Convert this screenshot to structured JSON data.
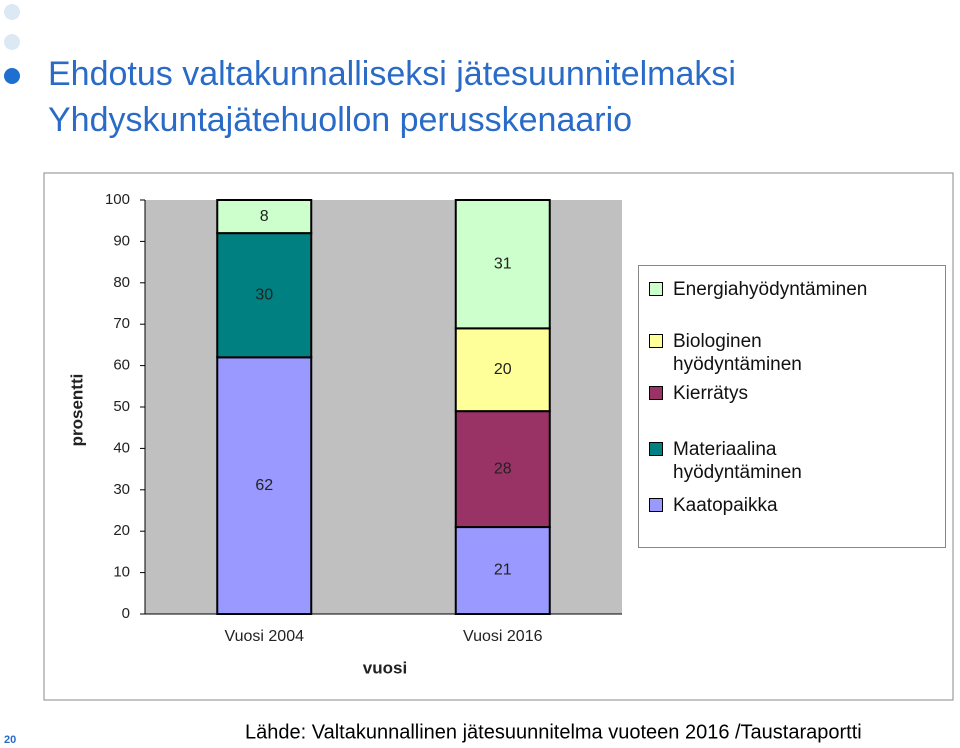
{
  "header": {
    "title": "Ehdotus valtakunnalliseksi jätesuunnitelmaksi",
    "subtitle": "Yhdyskuntajätehuollon perusskenaario"
  },
  "footer": {
    "source": "Lähde: Valtakunnallinen jätesuunnitelma vuoteen 2016 /Taustaraportti",
    "page_number": "20"
  },
  "chart_data": {
    "type": "stacked_bar",
    "categories": [
      "Vuosi 2004",
      "Vuosi 2016"
    ],
    "x_label": "vuosi",
    "y_label": "prosentti",
    "ylim": [
      0,
      100
    ],
    "yticks": [
      0,
      10,
      20,
      30,
      40,
      50,
      60,
      70,
      80,
      90,
      100
    ],
    "grid": false,
    "series": [
      {
        "name": "Kaatopaikka",
        "color": "#9999ff",
        "values": [
          62,
          21
        ]
      },
      {
        "name": "Materiaalina hyödyntäminen",
        "color": "#008080",
        "values": [
          30,
          null
        ]
      },
      {
        "name": "Kierrätys",
        "color": "#993366",
        "values": [
          null,
          28
        ]
      },
      {
        "name": "Biologinen hyödyntäminen",
        "color": "#ffff99",
        "values": [
          null,
          20
        ]
      },
      {
        "name": "Energiahyödyntäminen",
        "color": "#ccffcc",
        "values": [
          8,
          31
        ]
      }
    ]
  }
}
